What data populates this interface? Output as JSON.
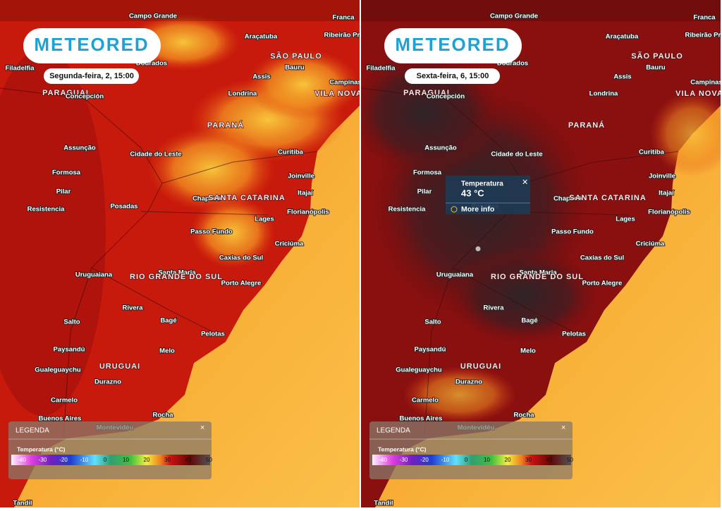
{
  "panels": [
    {
      "logo": "METEORED",
      "date": "Segunda-feira, 2, 15:00"
    },
    {
      "logo": "METEORED",
      "date": "Sexta-feira, 6, 15:00",
      "tooltip": {
        "title": "Temperatura",
        "value": "43 °C",
        "link": "More info",
        "close": "✕"
      }
    }
  ],
  "places": [
    "Campo Grande",
    "Franca",
    "Araçatuba",
    "Ribeirão Preto",
    "Dourados",
    "Filadelfia",
    "SÃO PAULO",
    "Bauru",
    "Assis",
    "Campinas",
    "PARAGUAI",
    "Concepción",
    "Londrina",
    "VILA NOVA",
    "PARANÁ",
    "Assunção",
    "Cidade do Leste",
    "Curitiba",
    "Formosa",
    "Joinville",
    "Pilar",
    "Itajaí",
    "Chapecó",
    "SANTA CATARINA",
    "Resistencia",
    "Posadas",
    "Florianópolis",
    "Lages",
    "Passo Fundo",
    "Criciúma",
    "Caxias do Sul",
    "Uruguaiana",
    "Santa Maria",
    "RIO GRANDE DO SUL",
    "Porto Alegre",
    "Rivera",
    "Bagé",
    "Salto",
    "Pelotas",
    "Paysandú",
    "Melo",
    "Gualeguaychu",
    "URUGUAI",
    "Durazno",
    "Carmelo",
    "Buenos Aires",
    "Rocha",
    "Montevidéu",
    "Tandil"
  ],
  "legend": {
    "title": "LEGENDA",
    "close": "×",
    "scale_title": "Temperatura (°C)",
    "ticks": [
      -40,
      -30,
      -20,
      -10,
      0,
      10,
      20,
      30,
      40,
      50
    ]
  }
}
